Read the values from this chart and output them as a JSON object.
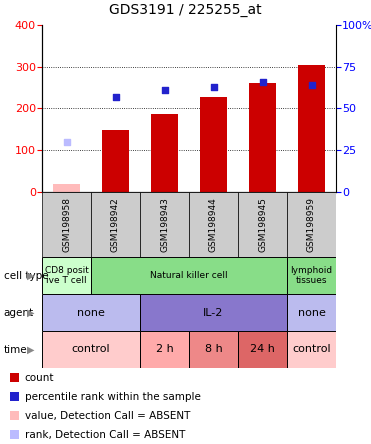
{
  "title": "GDS3191 / 225255_at",
  "samples": [
    "GSM198958",
    "GSM198942",
    "GSM198943",
    "GSM198944",
    "GSM198945",
    "GSM198959"
  ],
  "bar_values": [
    20,
    148,
    188,
    228,
    262,
    305
  ],
  "bar_colors": [
    "#ffbbbb",
    "#cc0000",
    "#cc0000",
    "#cc0000",
    "#cc0000",
    "#cc0000"
  ],
  "rank_values": [
    30,
    57,
    61,
    63,
    66,
    64
  ],
  "rank_colors": [
    "#bbbbff",
    "#2222cc",
    "#2222cc",
    "#2222cc",
    "#2222cc",
    "#2222cc"
  ],
  "ylim_left": [
    0,
    400
  ],
  "ylim_right": [
    0,
    100
  ],
  "yticks_left": [
    0,
    100,
    200,
    300,
    400
  ],
  "ytick_labels_left": [
    "0",
    "100",
    "200",
    "300",
    "400"
  ],
  "yticks_right": [
    0,
    25,
    50,
    75,
    100
  ],
  "ytick_labels_right": [
    "0",
    "25",
    "50",
    "75",
    "100%"
  ],
  "hgrid_values": [
    100,
    200,
    300
  ],
  "cell_type_data": [
    {
      "start": 0,
      "end": 1,
      "label": "CD8 posit\nive T cell",
      "color": "#ccffcc"
    },
    {
      "start": 1,
      "end": 5,
      "label": "Natural killer cell",
      "color": "#88dd88"
    },
    {
      "start": 5,
      "end": 6,
      "label": "lymphoid\ntissues",
      "color": "#88dd88"
    }
  ],
  "agent_data": [
    {
      "start": 0,
      "end": 2,
      "label": "none",
      "color": "#bbbbee"
    },
    {
      "start": 2,
      "end": 5,
      "label": "IL-2",
      "color": "#8877cc"
    },
    {
      "start": 5,
      "end": 6,
      "label": "none",
      "color": "#bbbbee"
    }
  ],
  "time_data": [
    {
      "start": 0,
      "end": 2,
      "label": "control",
      "color": "#ffcccc"
    },
    {
      "start": 2,
      "end": 3,
      "label": "2 h",
      "color": "#ffaaaa"
    },
    {
      "start": 3,
      "end": 4,
      "label": "8 h",
      "color": "#ee8888"
    },
    {
      "start": 4,
      "end": 5,
      "label": "24 h",
      "color": "#dd6666"
    },
    {
      "start": 5,
      "end": 6,
      "label": "control",
      "color": "#ffcccc"
    }
  ],
  "row_labels": [
    "cell type",
    "agent",
    "time"
  ],
  "legend_items": [
    {
      "color": "#cc0000",
      "label": "count"
    },
    {
      "color": "#2222cc",
      "label": "percentile rank within the sample"
    },
    {
      "color": "#ffbbbb",
      "label": "value, Detection Call = ABSENT"
    },
    {
      "color": "#bbbbff",
      "label": "rank, Detection Call = ABSENT"
    }
  ],
  "n_samples": 6,
  "sample_bg": "#cccccc"
}
